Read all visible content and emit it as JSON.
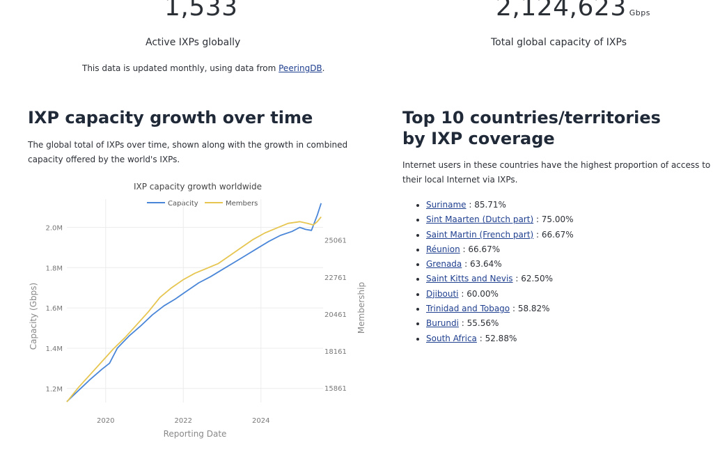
{
  "stats": {
    "active": {
      "value": "1,533",
      "label": "Active IXPs globally"
    },
    "capacity": {
      "value": "2,124,623",
      "unit": "Gbps",
      "label": "Total global capacity of IXPs"
    }
  },
  "note": {
    "prefix": "This data is updated monthly, using data from ",
    "link": "PeeringDB",
    "suffix": "."
  },
  "growth": {
    "heading": "IXP capacity growth over time",
    "description": "The global total of IXPs over time, shown along with the growth in combined capacity offered by the world's IXPs."
  },
  "top10": {
    "heading_line1": "Top 10 countries/territories",
    "heading_line2": "by IXP coverage",
    "description": "Internet users in these countries have the highest proportion of access to their local Internet via IXPs.",
    "items": [
      {
        "name": "Suriname",
        "value": "85.71%"
      },
      {
        "name": "Sint Maarten (Dutch part)",
        "value": "75.00%"
      },
      {
        "name": "Saint Martin (French part)",
        "value": "66.67%"
      },
      {
        "name": "Réunion",
        "value": "66.67%"
      },
      {
        "name": "Grenada",
        "value": "63.64%"
      },
      {
        "name": "Saint Kitts and Nevis",
        "value": "62.50%"
      },
      {
        "name": "Djibouti",
        "value": "60.00%"
      },
      {
        "name": "Trinidad and Tobago",
        "value": "58.82%"
      },
      {
        "name": "Burundi",
        "value": "55.56%"
      },
      {
        "name": "South Africa",
        "value": "52.88%"
      }
    ]
  },
  "chart_data": {
    "type": "line",
    "title": "IXP capacity growth worldwide",
    "xlabel": "Reporting Date",
    "ylabel": "Capacity (Gbps)",
    "y2label": "Membership",
    "xlim": [
      2019.0,
      2025.6
    ],
    "x_ticks": [
      2020,
      2022,
      2024
    ],
    "ylim": [
      1130000,
      2140000
    ],
    "y_ticks": [
      1200000,
      1400000,
      1600000,
      1800000,
      2000000
    ],
    "y_tick_labels": [
      "1.2M",
      "1.4M",
      "1.6M",
      "1.8M",
      "2.0M"
    ],
    "y2lim": [
      14962,
      27600
    ],
    "y2_ticks": [
      15861,
      18161,
      20461,
      22761,
      25061
    ],
    "legend": "top-center",
    "grid": true,
    "colors": {
      "Capacity": "#4a86d8",
      "Members": "#e6c550"
    },
    "series": [
      {
        "name": "Capacity",
        "axis": "left",
        "x": [
          2019.0,
          2019.3,
          2019.6,
          2019.9,
          2020.1,
          2020.3,
          2020.6,
          2020.9,
          2021.2,
          2021.5,
          2021.8,
          2022.1,
          2022.4,
          2022.7,
          2023.0,
          2023.3,
          2023.6,
          2023.9,
          2024.2,
          2024.5,
          2024.8,
          2025.0,
          2025.15,
          2025.3,
          2025.45,
          2025.55
        ],
        "values": [
          1135000,
          1190000,
          1245000,
          1295000,
          1325000,
          1400000,
          1460000,
          1510000,
          1565000,
          1610000,
          1645000,
          1685000,
          1725000,
          1755000,
          1790000,
          1825000,
          1860000,
          1895000,
          1930000,
          1960000,
          1980000,
          2000000,
          1990000,
          1985000,
          2060000,
          2120000
        ]
      },
      {
        "name": "Members",
        "axis": "right",
        "x": [
          2019.0,
          2019.3,
          2019.6,
          2019.9,
          2020.2,
          2020.5,
          2020.8,
          2021.1,
          2021.4,
          2021.7,
          2022.0,
          2022.3,
          2022.6,
          2022.9,
          2023.2,
          2023.5,
          2023.8,
          2024.1,
          2024.4,
          2024.7,
          2025.0,
          2025.2,
          2025.35,
          2025.45,
          2025.55
        ],
        "values": [
          15000,
          15900,
          16700,
          17500,
          18300,
          19000,
          19800,
          20600,
          21500,
          22100,
          22600,
          23000,
          23300,
          23600,
          24100,
          24600,
          25100,
          25500,
          25800,
          26100,
          26200,
          26100,
          26000,
          26200,
          26500
        ]
      }
    ]
  }
}
